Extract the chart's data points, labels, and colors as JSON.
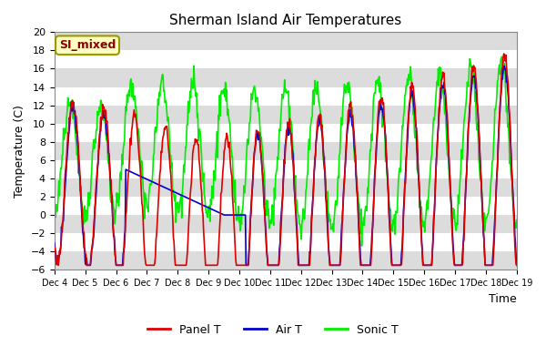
{
  "title": "Sherman Island Air Temperatures",
  "xlabel": "Time",
  "ylabel": "Temperature (C)",
  "ylim": [
    -6,
    20
  ],
  "xlim": [
    0,
    15
  ],
  "yticks": [
    -6,
    -4,
    -2,
    0,
    2,
    4,
    6,
    8,
    10,
    12,
    14,
    16,
    18,
    20
  ],
  "xtick_labels": [
    "Dec 4",
    "Dec 5",
    "Dec 6",
    "Dec 7",
    "Dec 8",
    "Dec 9",
    "Dec 10",
    "Dec 11",
    "Dec 12",
    "Dec 13",
    "Dec 14",
    "Dec 15",
    "Dec 16",
    "Dec 17",
    "Dec 18",
    "Dec 19"
  ],
  "fig_bg_color": "#ffffff",
  "plot_bg_color": "#ffffff",
  "stripe_color": "#dcdcdc",
  "line_colors": {
    "panel": "#dd0000",
    "air": "#0000cc",
    "sonic": "#00ee00"
  },
  "line_widths": {
    "panel": 1.2,
    "air": 1.2,
    "sonic": 1.2
  },
  "label_box_text": "SI_mixed",
  "label_box_facecolor": "#ffffc0",
  "label_box_edgecolor": "#999900",
  "label_box_textcolor": "#880000",
  "legend_labels": [
    "Panel T",
    "Air T",
    "Sonic T"
  ],
  "n_points": 720
}
